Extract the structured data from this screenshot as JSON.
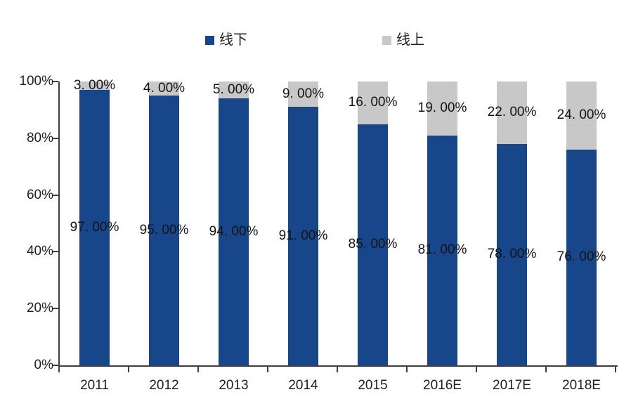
{
  "legend": {
    "offline_label": "线下",
    "online_label": "线上"
  },
  "colors": {
    "offline": "#17468B",
    "online": "#C8C8C8",
    "axis": "#3F3F3F",
    "text": "#1F1F1F",
    "background": "#FFFFFF"
  },
  "chart_data": {
    "type": "bar",
    "stacked": true,
    "stacked_to_100": true,
    "categories": [
      "2011",
      "2012",
      "2013",
      "2014",
      "2015",
      "2016E",
      "2017E",
      "2018E"
    ],
    "series": [
      {
        "name": "线下",
        "color": "#17468B",
        "values": [
          97,
          95,
          94,
          91,
          85,
          81,
          78,
          76
        ],
        "labels": [
          "97. 00%",
          "95. 00%",
          "94. 00%",
          "91. 00%",
          "85. 00%",
          "81. 00%",
          "78. 00%",
          "76. 00%"
        ]
      },
      {
        "name": "线上",
        "color": "#C8C8C8",
        "values": [
          3,
          4,
          5,
          9,
          16,
          19,
          22,
          24
        ],
        "labels": [
          "3. 00%",
          "4. 00%",
          "5. 00%",
          "9. 00%",
          "16. 00%",
          "19. 00%",
          "22. 00%",
          "24. 00%"
        ]
      }
    ],
    "title": "",
    "xlabel": "",
    "ylabel": "",
    "ylim": [
      0,
      100
    ],
    "y_ticks": [
      "0%",
      "20%",
      "40%",
      "60%",
      "80%",
      "100%"
    ],
    "grid": false,
    "legend_position": "top"
  }
}
